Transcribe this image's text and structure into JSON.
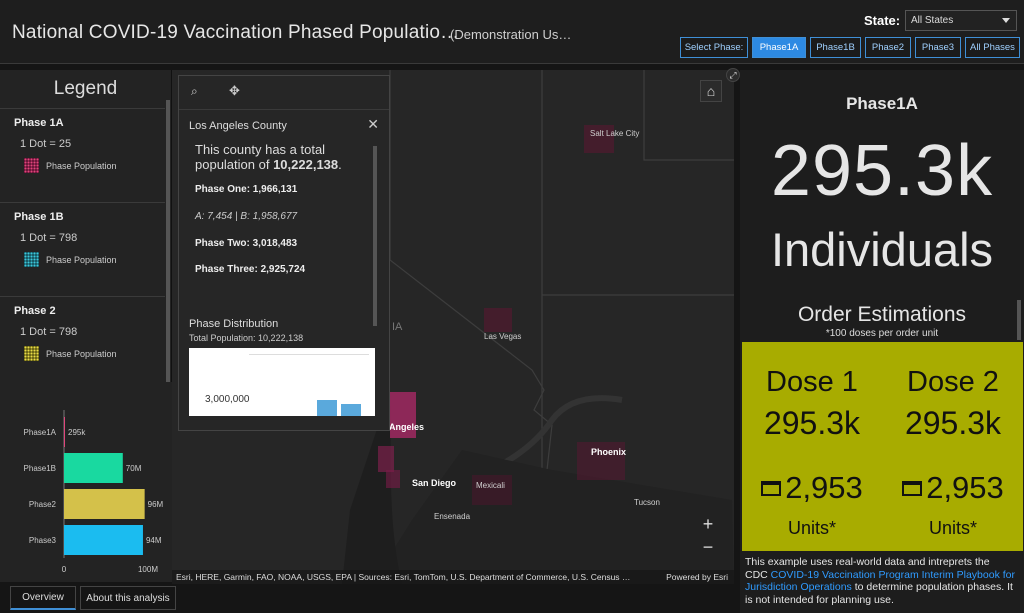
{
  "header": {
    "title": "National COVID-19 Vaccination Phased Populatio…",
    "subtitle": "(Demonstration Us…",
    "state_label": "State:",
    "state_value": "All States",
    "phase_buttons": [
      {
        "label": "Select Phase:",
        "active": false
      },
      {
        "label": "Phase1A",
        "active": true
      },
      {
        "label": "Phase1B",
        "active": false
      },
      {
        "label": "Phase2",
        "active": false
      },
      {
        "label": "Phase3",
        "active": false
      },
      {
        "label": "All Phases",
        "active": false
      }
    ]
  },
  "legend": {
    "title": "Legend",
    "sections": [
      {
        "phase": "Phase 1A",
        "dot": "1 Dot = 25",
        "item": "Phase Population",
        "color": "#c2185b"
      },
      {
        "phase": "Phase 1B",
        "dot": "1 Dot = 798",
        "item": "Phase Population",
        "color": "#26a6b8"
      },
      {
        "phase": "Phase 2",
        "dot": "1 Dot = 798",
        "item": "Phase Population",
        "color": "#d9cf3b"
      }
    ]
  },
  "chart_data": {
    "type": "bar",
    "orientation": "horizontal",
    "categories": [
      "Phase1A",
      "Phase1B",
      "Phase2",
      "Phase3"
    ],
    "values": [
      0.2953,
      70,
      96,
      94
    ],
    "value_labels": [
      "295k",
      "70M",
      "96M",
      "94M"
    ],
    "colors": [
      "#e0457b",
      "#19d9a0",
      "#d4c14a",
      "#1bbcf0"
    ],
    "xticks": [
      "0",
      "100M"
    ],
    "xlim": [
      0,
      100
    ]
  },
  "tabs": [
    {
      "label": "Overview",
      "active": true
    },
    {
      "label": "About this analysis",
      "active": false
    }
  ],
  "popup": {
    "county": "Los Angeles County",
    "desc_prefix": "This county has a total population of ",
    "desc_total": "10,222,138",
    "desc_suffix": ".",
    "phase_one": "Phase One: 1,966,131",
    "ab": "A: 7,454  | B: 1,958,677",
    "phase_two": "Phase Two: 3,018,483",
    "phase_three": "Phase Three: 2,925,724",
    "dist_heading": "Phase Distribution",
    "dist_sub": "Total Population: 10,222,138",
    "dist_axis": "3,000,000"
  },
  "map": {
    "labels": [
      {
        "text": "Salt Lake City",
        "bold": false
      },
      {
        "text": "Las Vegas",
        "bold": false
      },
      {
        "text": "Angeles",
        "bold": true
      },
      {
        "text": "Phoenix",
        "bold": true
      },
      {
        "text": "San Diego",
        "bold": true
      },
      {
        "text": "Mexicali",
        "bold": false
      },
      {
        "text": "Tucson",
        "bold": false
      },
      {
        "text": "Ensenada",
        "bold": false
      },
      {
        "text": "IA",
        "bold": false
      }
    ],
    "attribution": "Esri, HERE, Garmin, FAO, NOAA, USGS, EPA | Sources: Esri, TomTom, U.S. Department of Commerce, U.S. Census …",
    "powered": "Powered by Esri"
  },
  "panel": {
    "phase": "Phase1A",
    "big": "295.3k",
    "individuals": "Individuals",
    "order_title": "Order Estimations",
    "order_note": "*100 doses per order unit",
    "doses": [
      {
        "label": "Dose 1",
        "value": "295.3k",
        "units": "2,953",
        "unit_label": "Units*"
      },
      {
        "label": "Dose 2",
        "value": "295.3k",
        "units": "2,953",
        "unit_label": "Units*"
      }
    ],
    "note_pre": "This example uses real-world data and intreprets the CDC ",
    "note_link": "COVID-19 Vaccination Program Interim Playbook for Jurisdiction Operations",
    "note_post": " to determine population phases. It is not intended for planning use."
  },
  "colors": {
    "accent": "#2d8ae3",
    "panel_yellow": "#a8ac00"
  }
}
